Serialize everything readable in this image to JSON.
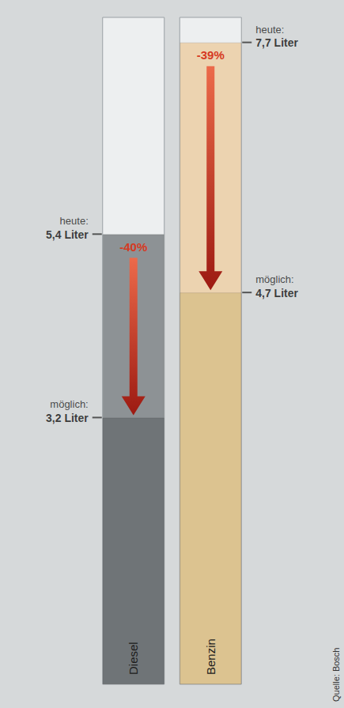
{
  "chart_data": {
    "type": "bar",
    "categories": [
      "Diesel",
      "Benzin"
    ],
    "series": [
      {
        "name": "heute:",
        "values": [
          5.4,
          7.7
        ],
        "value_labels": [
          "5,4 Liter",
          "7,7 Liter"
        ],
        "colors": [
          "#8d9295",
          "#ecd3b0"
        ]
      },
      {
        "name": "möglich:",
        "values": [
          3.2,
          4.7
        ],
        "value_labels": [
          "3,2 Liter",
          "4,7 Liter"
        ],
        "colors": [
          "#6f7477",
          "#dcc390"
        ]
      }
    ],
    "annotations": [
      "-40%",
      "-39%"
    ],
    "source": "Quelle: Bosch",
    "ylim": [
      0,
      8
    ],
    "yticks": [],
    "tick_labels": "x",
    "data_labels": true,
    "grid": false
  }
}
